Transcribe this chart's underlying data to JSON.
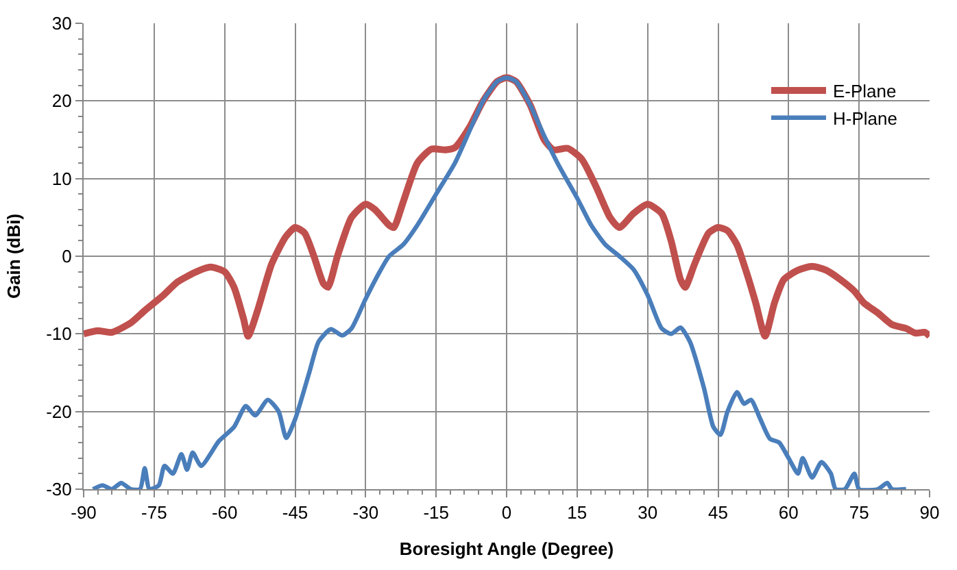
{
  "chart_data": {
    "type": "line",
    "xlabel": "Boresight Angle (Degree)",
    "ylabel": "Gain (dBi)",
    "xlim": [
      -90,
      90
    ],
    "xticks": [
      -90,
      -75,
      -60,
      -45,
      -30,
      -15,
      0,
      15,
      30,
      45,
      60,
      75,
      90
    ],
    "ylim": [
      -30,
      30
    ],
    "yticks": [
      -30,
      -20,
      -10,
      0,
      10,
      20,
      30
    ],
    "grid": true,
    "legend": "top right",
    "marker": "none",
    "line_style": "solid",
    "series": [
      {
        "name": "E-Plane",
        "color": "#c0504d",
        "x": [
          -90,
          -87,
          -84,
          -80,
          -77,
          -73,
          -70,
          -66,
          -63,
          -60,
          -58,
          -56,
          -55,
          -53,
          -50,
          -47,
          -45,
          -43,
          -41,
          -39,
          -38,
          -36,
          -33,
          -30,
          -28,
          -25,
          -24,
          -22,
          -19,
          -16,
          -13,
          -11,
          -8,
          -5,
          -2,
          0,
          2,
          5,
          8,
          10,
          13,
          16,
          19,
          22,
          24,
          27,
          30,
          33,
          35,
          37,
          38,
          40,
          43,
          45,
          47,
          49,
          51,
          53,
          55,
          57,
          59,
          62,
          65,
          68,
          71,
          74,
          76,
          79,
          82,
          85,
          87,
          89,
          90
        ],
        "values": [
          -10,
          -9.6,
          -9.8,
          -8.6,
          -7,
          -5,
          -3.3,
          -2,
          -1.4,
          -2,
          -4,
          -8,
          -10.3,
          -7,
          -1,
          2.5,
          3.7,
          3,
          0,
          -3.5,
          -4,
          0,
          5,
          6.7,
          6,
          4,
          3.7,
          7,
          12,
          13.8,
          13.7,
          14,
          16.5,
          20,
          22.5,
          23,
          22.5,
          19.5,
          15,
          13.7,
          13.9,
          12.5,
          9,
          5,
          3.7,
          5.5,
          6.7,
          5.5,
          2,
          -3,
          -4,
          -1,
          3,
          3.7,
          3.3,
          1.5,
          -2,
          -6,
          -10.3,
          -6,
          -3,
          -1.8,
          -1.3,
          -1.8,
          -3,
          -4.5,
          -6,
          -7.3,
          -8.8,
          -9.3,
          -9.9,
          -9.8,
          -10.3
        ]
      },
      {
        "name": "H-Plane",
        "color": "#4a7ebb",
        "x": [
          -88,
          -86,
          -84,
          -82,
          -80,
          -78,
          -77,
          -76,
          -74,
          -72.8,
          -71,
          -69.2,
          -68,
          -66.8,
          -65,
          -61.2,
          -58,
          -55.5,
          -53.5,
          -50.8,
          -48.5,
          -46.9,
          -45,
          -42,
          -40,
          -37.4,
          -35,
          -33,
          -30,
          -27,
          -25,
          -22,
          -19,
          -15,
          -11,
          -8,
          -5,
          -2,
          0,
          2,
          5,
          8,
          11,
          15,
          18,
          21,
          24,
          27,
          30,
          33,
          35,
          37,
          39,
          42,
          44,
          45.5,
          47,
          49,
          50.5,
          52,
          54,
          56,
          58,
          60,
          62,
          63,
          65,
          67,
          69,
          70,
          72,
          74,
          75,
          79,
          81,
          82,
          85
        ],
        "values": [
          -30,
          -29.5,
          -30,
          -29.2,
          -30,
          -30,
          -27.3,
          -30,
          -29.5,
          -27,
          -28,
          -25.5,
          -27.5,
          -25.3,
          -27,
          -23.8,
          -22,
          -19.3,
          -20.5,
          -18.5,
          -20,
          -23.4,
          -21,
          -15,
          -11,
          -9.4,
          -10.2,
          -9.3,
          -5.5,
          -2,
          0,
          1.5,
          4,
          8,
          12,
          16,
          20,
          22.5,
          23,
          22.5,
          19.5,
          15.5,
          11.8,
          7.5,
          4,
          1.5,
          0,
          -1.7,
          -5,
          -9.3,
          -10,
          -9.2,
          -11,
          -17,
          -22,
          -23,
          -20,
          -17.5,
          -19,
          -18.5,
          -21,
          -23.5,
          -24,
          -26,
          -28,
          -26,
          -28.5,
          -26.5,
          -28,
          -30,
          -30,
          -28,
          -30,
          -30,
          -29.2,
          -30,
          -30
        ]
      }
    ]
  }
}
